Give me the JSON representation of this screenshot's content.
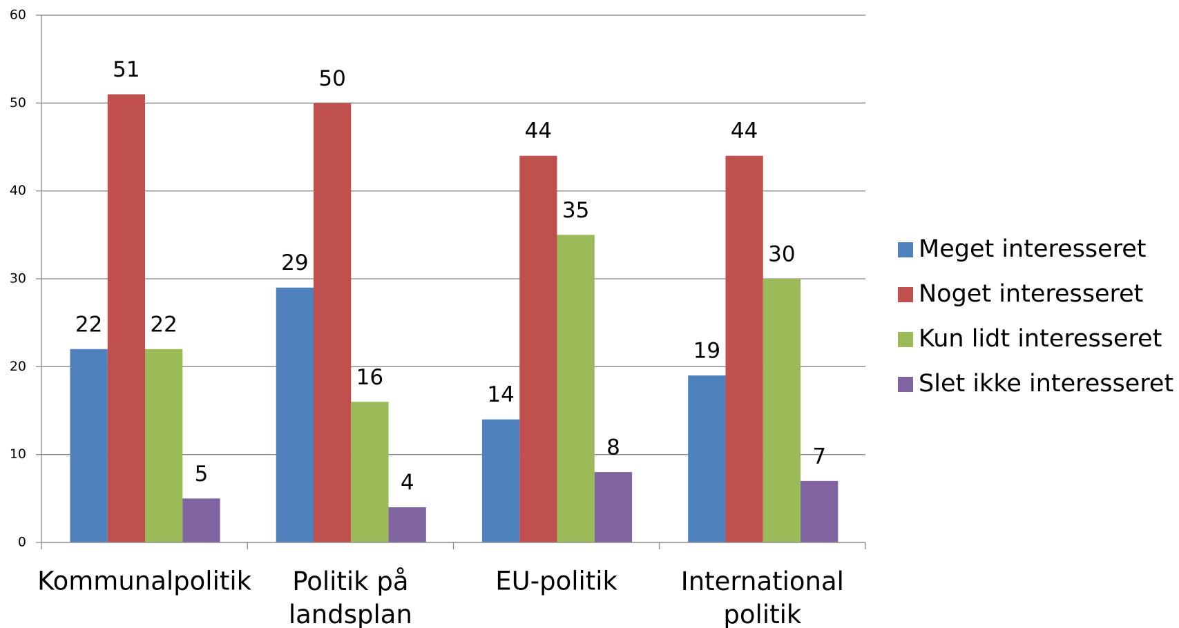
{
  "chart_data": {
    "type": "bar",
    "categories": [
      "Kommunalpolitik",
      "Politik på landsplan",
      "EU-politik",
      "International politik"
    ],
    "series": [
      {
        "name": "Meget interesseret",
        "color": "#4f81bd",
        "values": [
          22,
          29,
          14,
          19
        ]
      },
      {
        "name": "Noget interesseret",
        "color": "#c0504d",
        "values": [
          51,
          50,
          44,
          44
        ]
      },
      {
        "name": "Kun lidt interesseret",
        "color": "#9bbb59",
        "values": [
          22,
          16,
          35,
          30
        ]
      },
      {
        "name": "Slet ikke interesseret",
        "color": "#8064a2",
        "values": [
          5,
          4,
          8,
          7
        ]
      }
    ],
    "ylim": [
      0,
      60
    ],
    "yticks": [
      0,
      10,
      20,
      30,
      40,
      50,
      60
    ],
    "grid": true,
    "legend": "right"
  }
}
